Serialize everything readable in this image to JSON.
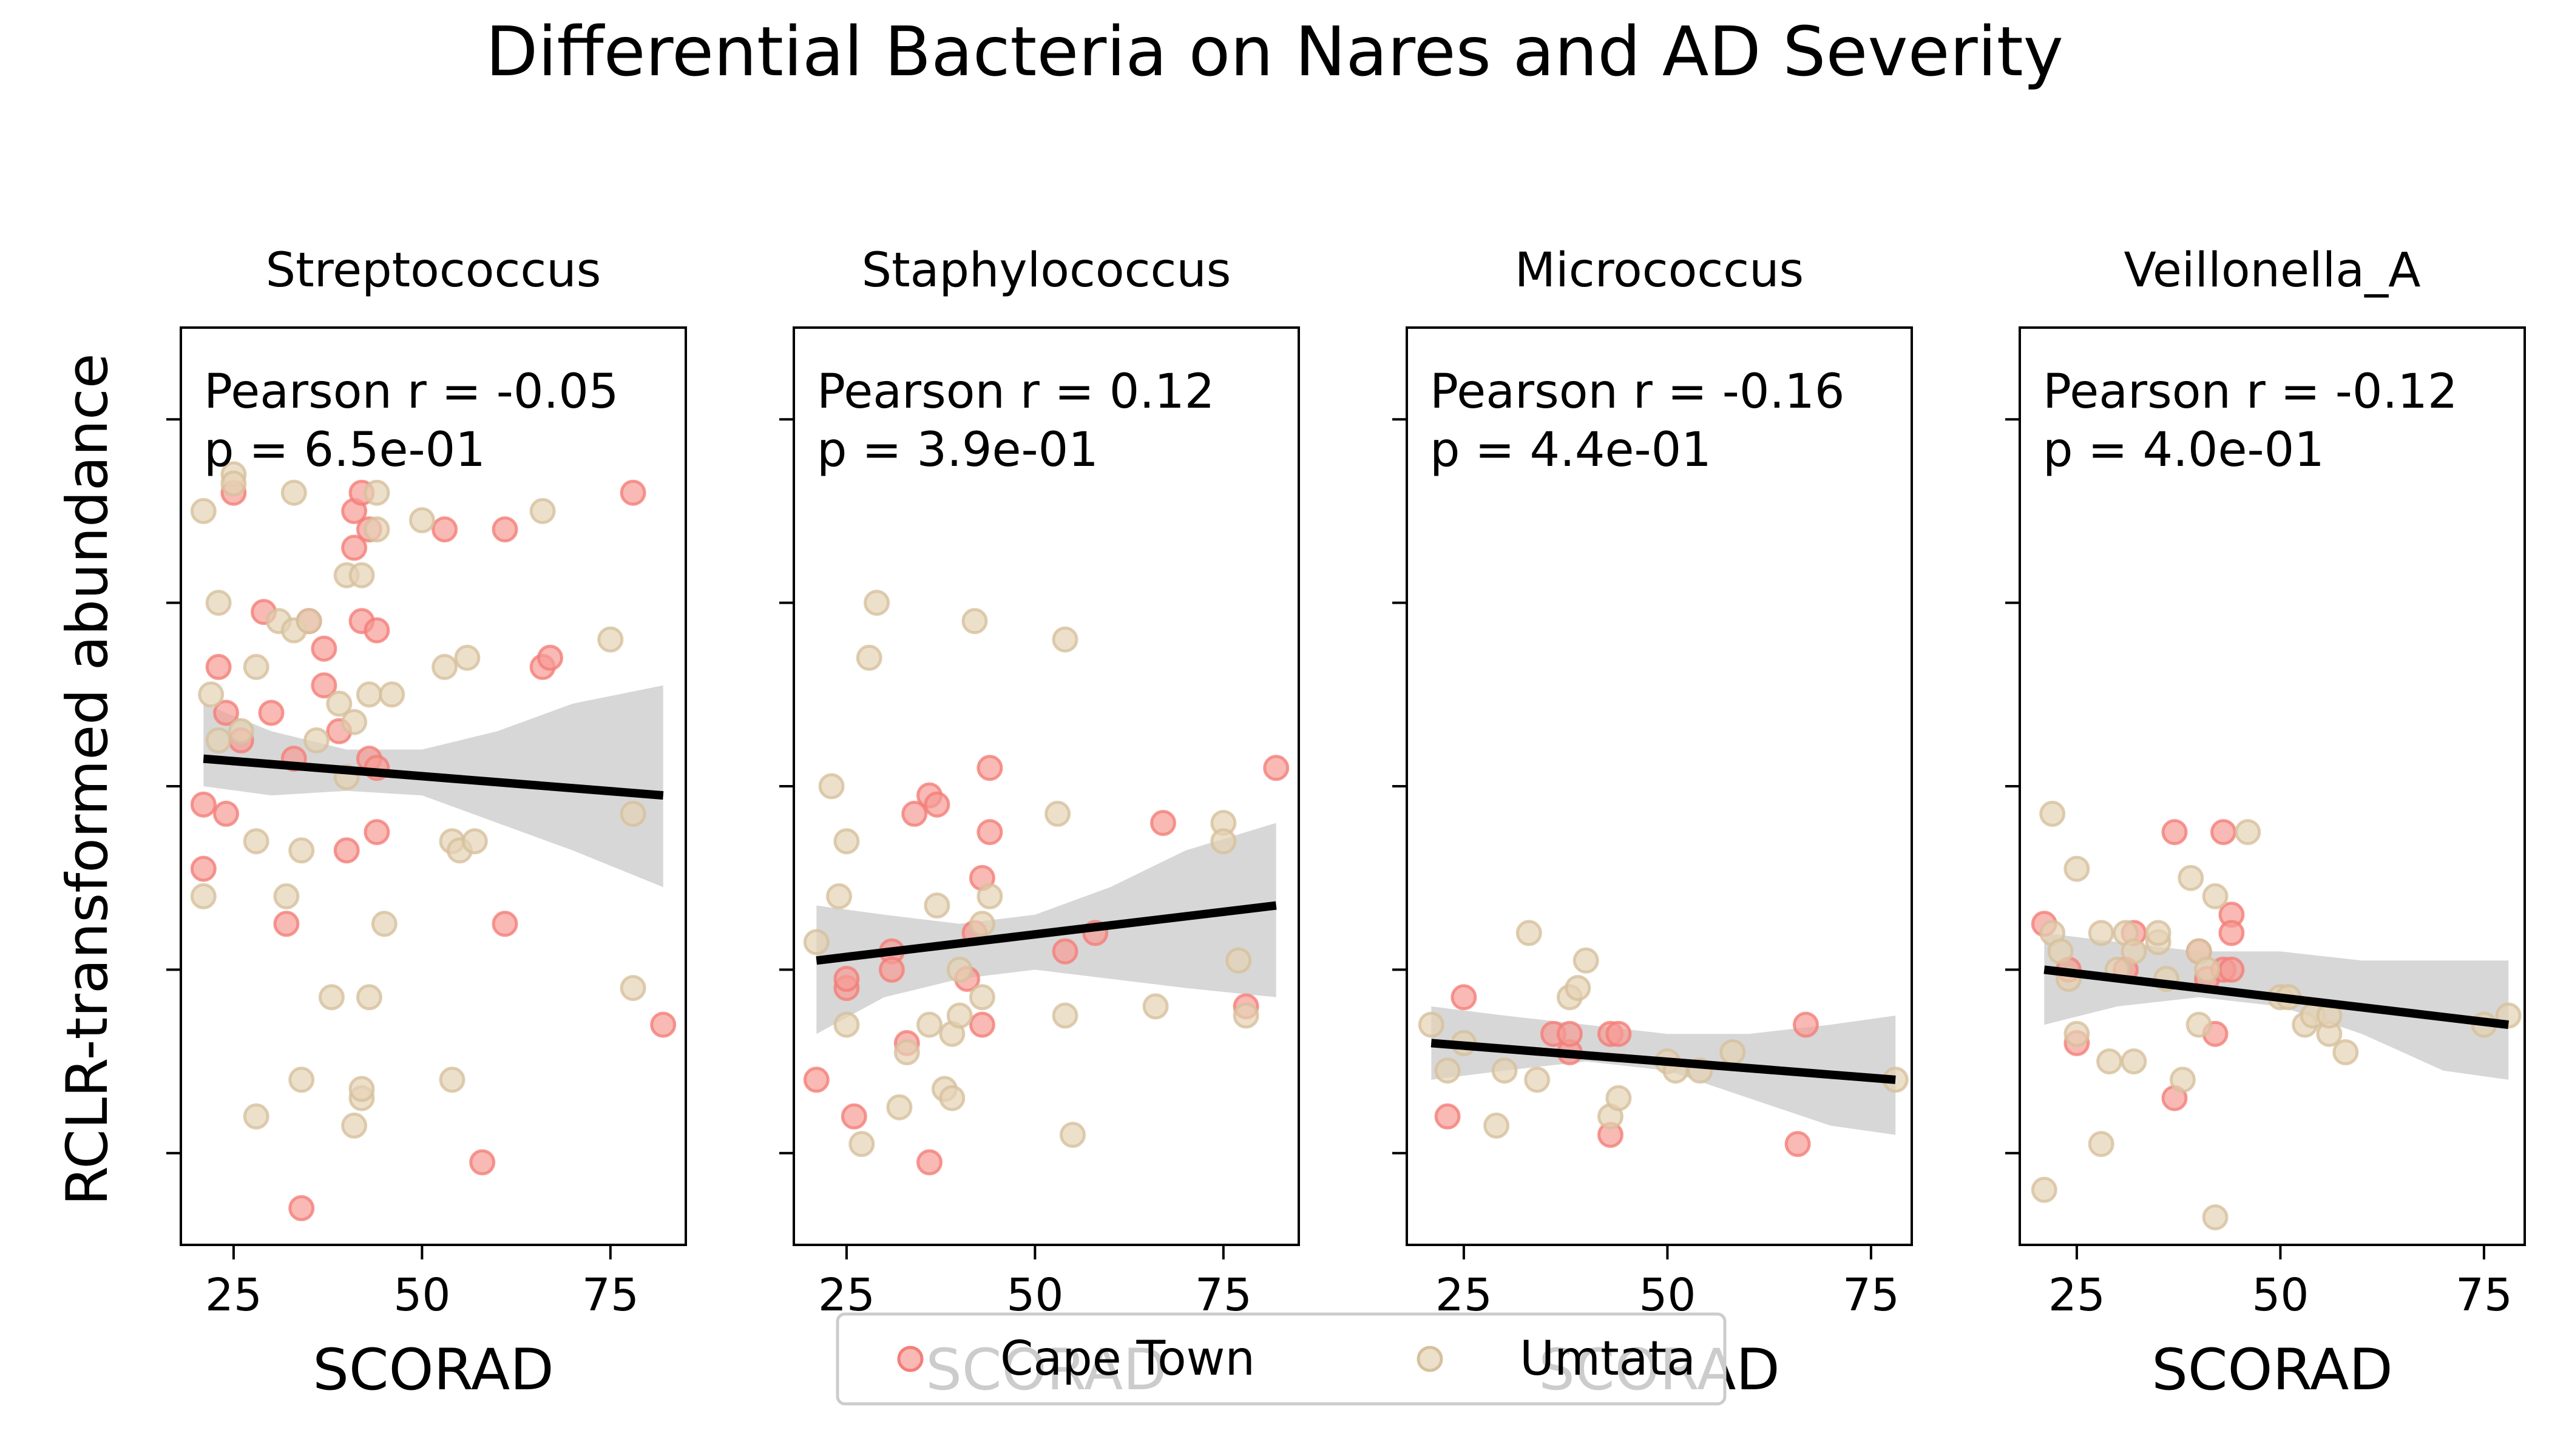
{
  "figure": {
    "title": "Differential Bacteria on Nares and AD Severity",
    "ylabel": "RCLR-transformed abundance"
  },
  "legend": {
    "placement": "bottom-center",
    "items": [
      {
        "label": "Cape Town",
        "color": "#f4a09a"
      },
      {
        "label": "Umtata",
        "color": "#e3d0b2"
      }
    ]
  },
  "colors": {
    "cape_town_fill": "#f79b95",
    "cape_town_edge": "#f47e78",
    "umtata_fill": "#e6d3b5",
    "umtata_edge": "#d6c09d",
    "regression_line": "#000000",
    "confidence_band": "#d3d3d3"
  },
  "chart_data": [
    {
      "type": "scatter",
      "title": "Streptococcus",
      "xlabel": "SCORAD",
      "xticks": [
        25,
        50,
        75
      ],
      "xlim": [
        18,
        85
      ],
      "ylim": [
        0,
        10
      ],
      "y_tick_values": [
        1,
        3,
        5,
        7,
        9
      ],
      "y_tick_labels_shown": false,
      "annotation": [
        "Pearson r = -0.05",
        "p = 6.5e-01"
      ],
      "regression": {
        "x_start": 21,
        "y_start": 5.3,
        "x_end": 82,
        "y_end": 4.9
      },
      "band": {
        "x": [
          21,
          30,
          40,
          50,
          60,
          70,
          82
        ],
        "lower": [
          5.0,
          4.9,
          4.95,
          4.9,
          4.6,
          4.3,
          3.9
        ],
        "upper": [
          5.9,
          5.6,
          5.4,
          5.4,
          5.6,
          5.9,
          6.1
        ]
      },
      "series": [
        {
          "name": "Cape Town",
          "color": "#f79b95",
          "points": [
            [
              21,
              4.8
            ],
            [
              21,
              4.1
            ],
            [
              23,
              6.3
            ],
            [
              24,
              5.8
            ],
            [
              24,
              4.7
            ],
            [
              25,
              8.2
            ],
            [
              26,
              5.5
            ],
            [
              29,
              6.9
            ],
            [
              30,
              5.8
            ],
            [
              32,
              3.5
            ],
            [
              33,
              5.3
            ],
            [
              34,
              0.4
            ],
            [
              35,
              6.8
            ],
            [
              37,
              6.1
            ],
            [
              37,
              6.5
            ],
            [
              39,
              5.6
            ],
            [
              40,
              4.3
            ],
            [
              41,
              7.6
            ],
            [
              41,
              8.0
            ],
            [
              42,
              6.8
            ],
            [
              42,
              8.2
            ],
            [
              43,
              7.8
            ],
            [
              43,
              5.3
            ],
            [
              44,
              5.2
            ],
            [
              44,
              6.7
            ],
            [
              44,
              4.5
            ],
            [
              53,
              7.8
            ],
            [
              58,
              0.9
            ],
            [
              61,
              3.5
            ],
            [
              61,
              7.8
            ],
            [
              66,
              6.3
            ],
            [
              67,
              6.4
            ],
            [
              78,
              8.2
            ],
            [
              82,
              2.4
            ]
          ]
        },
        {
          "name": "Umtata",
          "color": "#e6d3b5",
          "points": [
            [
              21,
              8.0
            ],
            [
              21,
              3.8
            ],
            [
              22,
              6.0
            ],
            [
              23,
              7.0
            ],
            [
              23,
              5.5
            ],
            [
              25,
              8.4
            ],
            [
              25,
              8.3
            ],
            [
              26,
              5.6
            ],
            [
              28,
              6.3
            ],
            [
              28,
              4.4
            ],
            [
              28,
              1.4
            ],
            [
              31,
              6.8
            ],
            [
              32,
              3.8
            ],
            [
              33,
              8.2
            ],
            [
              33,
              6.7
            ],
            [
              34,
              4.3
            ],
            [
              34,
              1.8
            ],
            [
              35,
              6.8
            ],
            [
              36,
              5.5
            ],
            [
              38,
              2.7
            ],
            [
              39,
              5.9
            ],
            [
              40,
              7.3
            ],
            [
              40,
              5.1
            ],
            [
              41,
              1.3
            ],
            [
              41,
              5.7
            ],
            [
              42,
              7.3
            ],
            [
              42,
              1.6
            ],
            [
              42,
              1.7
            ],
            [
              43,
              6.0
            ],
            [
              43,
              2.7
            ],
            [
              44,
              8.2
            ],
            [
              44,
              7.8
            ],
            [
              45,
              3.5
            ],
            [
              46,
              6.0
            ],
            [
              50,
              7.9
            ],
            [
              53,
              6.3
            ],
            [
              54,
              4.4
            ],
            [
              54,
              1.8
            ],
            [
              55,
              4.3
            ],
            [
              56,
              6.4
            ],
            [
              57,
              4.4
            ],
            [
              66,
              8.0
            ],
            [
              75,
              6.6
            ],
            [
              78,
              4.7
            ],
            [
              78,
              2.8
            ]
          ]
        }
      ]
    },
    {
      "type": "scatter",
      "title": "Staphylococcus",
      "xlabel": "SCORAD",
      "xticks": [
        25,
        50,
        75
      ],
      "xlim": [
        18,
        85
      ],
      "ylim": [
        0,
        10
      ],
      "y_tick_values": [
        1,
        3,
        5,
        7,
        9
      ],
      "y_tick_labels_shown": false,
      "annotation": [
        "Pearson r = 0.12",
        "p = 3.9e-01"
      ],
      "regression": {
        "x_start": 21,
        "y_start": 3.1,
        "x_end": 82,
        "y_end": 3.7
      },
      "band": {
        "x": [
          21,
          30,
          40,
          50,
          60,
          70,
          82
        ],
        "lower": [
          2.3,
          2.7,
          2.9,
          3.0,
          2.9,
          2.8,
          2.7
        ],
        "upper": [
          3.7,
          3.6,
          3.5,
          3.6,
          3.9,
          4.3,
          4.6
        ]
      },
      "series": [
        {
          "name": "Cape Town",
          "color": "#f79b95",
          "points": [
            [
              21,
              1.8
            ],
            [
              25,
              2.8
            ],
            [
              25,
              2.9
            ],
            [
              26,
              1.4
            ],
            [
              31,
              3.2
            ],
            [
              31,
              3.0
            ],
            [
              33,
              2.2
            ],
            [
              34,
              4.7
            ],
            [
              36,
              4.9
            ],
            [
              36,
              0.9
            ],
            [
              37,
              4.8
            ],
            [
              41,
              2.9
            ],
            [
              42,
              3.4
            ],
            [
              43,
              4.0
            ],
            [
              43,
              2.4
            ],
            [
              44,
              5.2
            ],
            [
              44,
              4.5
            ],
            [
              54,
              3.2
            ],
            [
              58,
              3.4
            ],
            [
              67,
              4.6
            ],
            [
              78,
              2.6
            ],
            [
              82,
              5.2
            ]
          ]
        },
        {
          "name": "Umtata",
          "color": "#e6d3b5",
          "points": [
            [
              21,
              3.3
            ],
            [
              23,
              5.0
            ],
            [
              24,
              3.8
            ],
            [
              25,
              4.4
            ],
            [
              25,
              2.4
            ],
            [
              27,
              1.1
            ],
            [
              28,
              6.4
            ],
            [
              29,
              7.0
            ],
            [
              32,
              1.5
            ],
            [
              33,
              2.1
            ],
            [
              36,
              2.4
            ],
            [
              37,
              3.7
            ],
            [
              38,
              1.7
            ],
            [
              39,
              2.3
            ],
            [
              39,
              1.6
            ],
            [
              40,
              2.5
            ],
            [
              40,
              3.0
            ],
            [
              42,
              6.8
            ],
            [
              43,
              2.7
            ],
            [
              43,
              3.5
            ],
            [
              44,
              3.8
            ],
            [
              53,
              4.7
            ],
            [
              54,
              6.6
            ],
            [
              54,
              2.5
            ],
            [
              55,
              1.2
            ],
            [
              66,
              2.6
            ],
            [
              75,
              4.6
            ],
            [
              75,
              4.4
            ],
            [
              77,
              3.1
            ],
            [
              78,
              2.5
            ]
          ]
        }
      ]
    },
    {
      "type": "scatter",
      "title": "Micrococcus",
      "xlabel": "SCORAD",
      "xticks": [
        25,
        50,
        75
      ],
      "xlim": [
        18,
        80
      ],
      "ylim": [
        0,
        10
      ],
      "y_tick_values": [
        1,
        3,
        5,
        7,
        9
      ],
      "y_tick_labels_shown": false,
      "annotation": [
        "Pearson r = -0.16",
        "p = 4.4e-01"
      ],
      "regression": {
        "x_start": 21,
        "y_start": 2.2,
        "x_end": 78,
        "y_end": 1.8
      },
      "band": {
        "x": [
          21,
          30,
          40,
          50,
          60,
          70,
          78
        ],
        "lower": [
          1.8,
          1.9,
          2.0,
          1.9,
          1.6,
          1.3,
          1.2
        ],
        "upper": [
          2.6,
          2.5,
          2.4,
          2.3,
          2.3,
          2.4,
          2.5
        ]
      },
      "series": [
        {
          "name": "Cape Town",
          "color": "#f79b95",
          "points": [
            [
              23,
              1.4
            ],
            [
              25,
              2.7
            ],
            [
              36,
              2.3
            ],
            [
              38,
              2.1
            ],
            [
              38,
              2.3
            ],
            [
              43,
              2.3
            ],
            [
              43,
              1.2
            ],
            [
              44,
              2.3
            ],
            [
              66,
              1.1
            ],
            [
              67,
              2.4
            ]
          ]
        },
        {
          "name": "Umtata",
          "color": "#e6d3b5",
          "points": [
            [
              21,
              2.4
            ],
            [
              23,
              1.9
            ],
            [
              25,
              2.2
            ],
            [
              29,
              1.3
            ],
            [
              30,
              1.9
            ],
            [
              33,
              3.4
            ],
            [
              34,
              1.8
            ],
            [
              38,
              2.7
            ],
            [
              39,
              2.8
            ],
            [
              40,
              3.1
            ],
            [
              43,
              1.4
            ],
            [
              44,
              1.6
            ],
            [
              50,
              2.0
            ],
            [
              51,
              1.9
            ],
            [
              54,
              1.9
            ],
            [
              58,
              2.1
            ],
            [
              78,
              1.8
            ]
          ]
        }
      ]
    },
    {
      "type": "scatter",
      "title": "Veillonella_A",
      "xlabel": "SCORAD",
      "xticks": [
        25,
        50,
        75
      ],
      "xlim": [
        18,
        80
      ],
      "ylim": [
        0,
        10
      ],
      "y_tick_values": [
        1,
        3,
        5,
        7,
        9
      ],
      "y_tick_labels_shown": false,
      "annotation": [
        "Pearson r = -0.12",
        "p = 4.0e-01"
      ],
      "regression": {
        "x_start": 21,
        "y_start": 3.0,
        "x_end": 78,
        "y_end": 2.4
      },
      "band": {
        "x": [
          21,
          30,
          40,
          50,
          60,
          70,
          78
        ],
        "lower": [
          2.4,
          2.6,
          2.7,
          2.6,
          2.3,
          1.9,
          1.8
        ],
        "upper": [
          3.4,
          3.3,
          3.2,
          3.2,
          3.1,
          3.1,
          3.1
        ]
      },
      "series": [
        {
          "name": "Cape Town",
          "color": "#f79b95",
          "points": [
            [
              21,
              3.5
            ],
            [
              24,
              3.0
            ],
            [
              25,
              2.2
            ],
            [
              31,
              3.0
            ],
            [
              32,
              3.4
            ],
            [
              37,
              4.5
            ],
            [
              37,
              1.6
            ],
            [
              40,
              3.2
            ],
            [
              41,
              2.9
            ],
            [
              42,
              2.3
            ],
            [
              43,
              3.0
            ],
            [
              43,
              4.5
            ],
            [
              44,
              3.6
            ],
            [
              44,
              3.4
            ],
            [
              44,
              3.0
            ]
          ]
        },
        {
          "name": "Umtata",
          "color": "#e6d3b5",
          "points": [
            [
              21,
              0.6
            ],
            [
              22,
              3.4
            ],
            [
              22,
              4.7
            ],
            [
              23,
              3.2
            ],
            [
              24,
              2.9
            ],
            [
              25,
              4.1
            ],
            [
              25,
              2.3
            ],
            [
              28,
              1.1
            ],
            [
              28,
              3.4
            ],
            [
              29,
              2.0
            ],
            [
              30,
              3.0
            ],
            [
              31,
              3.4
            ],
            [
              32,
              3.2
            ],
            [
              32,
              2.0
            ],
            [
              35,
              3.3
            ],
            [
              35,
              3.4
            ],
            [
              36,
              2.9
            ],
            [
              38,
              1.8
            ],
            [
              39,
              4.0
            ],
            [
              40,
              2.4
            ],
            [
              40,
              3.2
            ],
            [
              41,
              3.0
            ],
            [
              42,
              0.3
            ],
            [
              42,
              3.8
            ],
            [
              46,
              4.5
            ],
            [
              50,
              2.7
            ],
            [
              51,
              2.7
            ],
            [
              53,
              2.4
            ],
            [
              54,
              2.5
            ],
            [
              56,
              2.3
            ],
            [
              56,
              2.5
            ],
            [
              58,
              2.1
            ],
            [
              75,
              2.4
            ],
            [
              78,
              2.5
            ]
          ]
        }
      ]
    }
  ]
}
